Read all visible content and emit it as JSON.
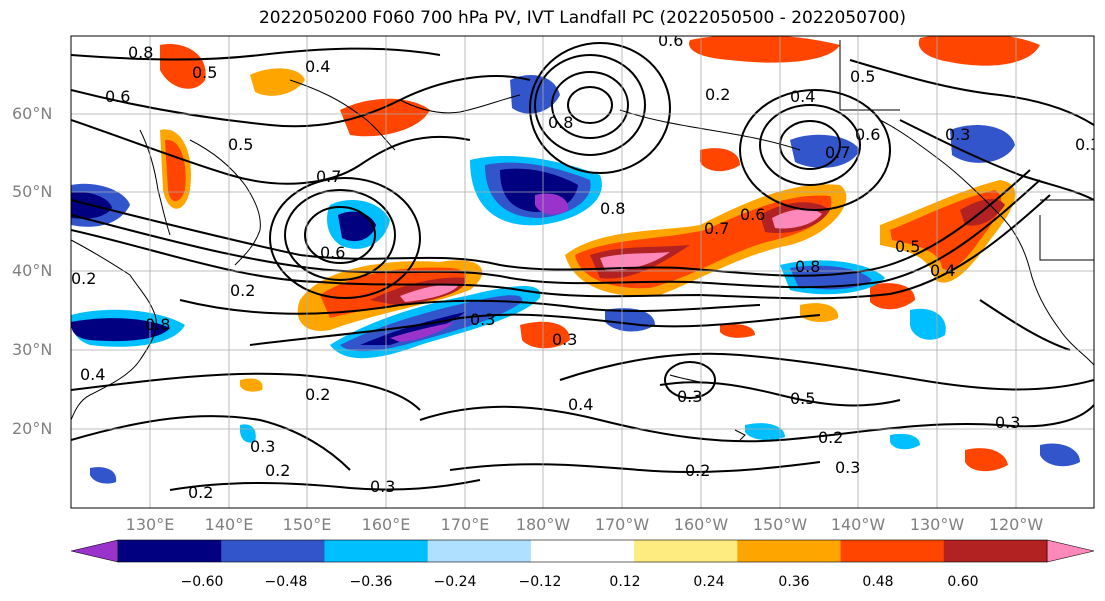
{
  "title": "2022050200 F060 700 hPa PV, IVT Landfall PC (2022050500 - 2022050700)",
  "lat_labels": [
    "60°N",
    "50°N",
    "40°N",
    "30°N",
    "20°N"
  ],
  "lon_labels": [
    "130°E",
    "140°E",
    "150°E",
    "160°E",
    "170°E",
    "180°W",
    "170°W",
    "160°W",
    "150°W",
    "140°W",
    "130°W",
    "120°W"
  ],
  "colorbar": {
    "ticks": [
      "−0.60",
      "−0.48",
      "−0.36",
      "−0.24",
      "−0.12",
      "0.12",
      "0.24",
      "0.36",
      "0.48",
      "0.60"
    ],
    "colors": [
      "#9933cc",
      "#000080",
      "#3355cc",
      "#00bfff",
      "#b0e0ff",
      "#ffffff",
      "#ffec80",
      "#ffa500",
      "#ff4500",
      "#b22222",
      "#ff88bb"
    ]
  },
  "contour_labels": [
    "0.8",
    "0.6",
    "0.5",
    "0.4",
    "0.6",
    "0.8",
    "0.5",
    "0.7",
    "0.6",
    "0.2",
    "0.2",
    "0.8",
    "0.3",
    "0.3",
    "0.4",
    "0.2",
    "0.3",
    "0.2",
    "0.2",
    "0.4",
    "0.3",
    "0.2",
    "0.3",
    "0.8",
    "0.7",
    "0.8",
    "0.6",
    "0.5",
    "0.4",
    "0.3",
    "0.6",
    "0.5",
    "0.3",
    "0.4",
    "0.5",
    "0.2",
    "0.3",
    "0.2",
    "0.3",
    "0.7"
  ]
}
